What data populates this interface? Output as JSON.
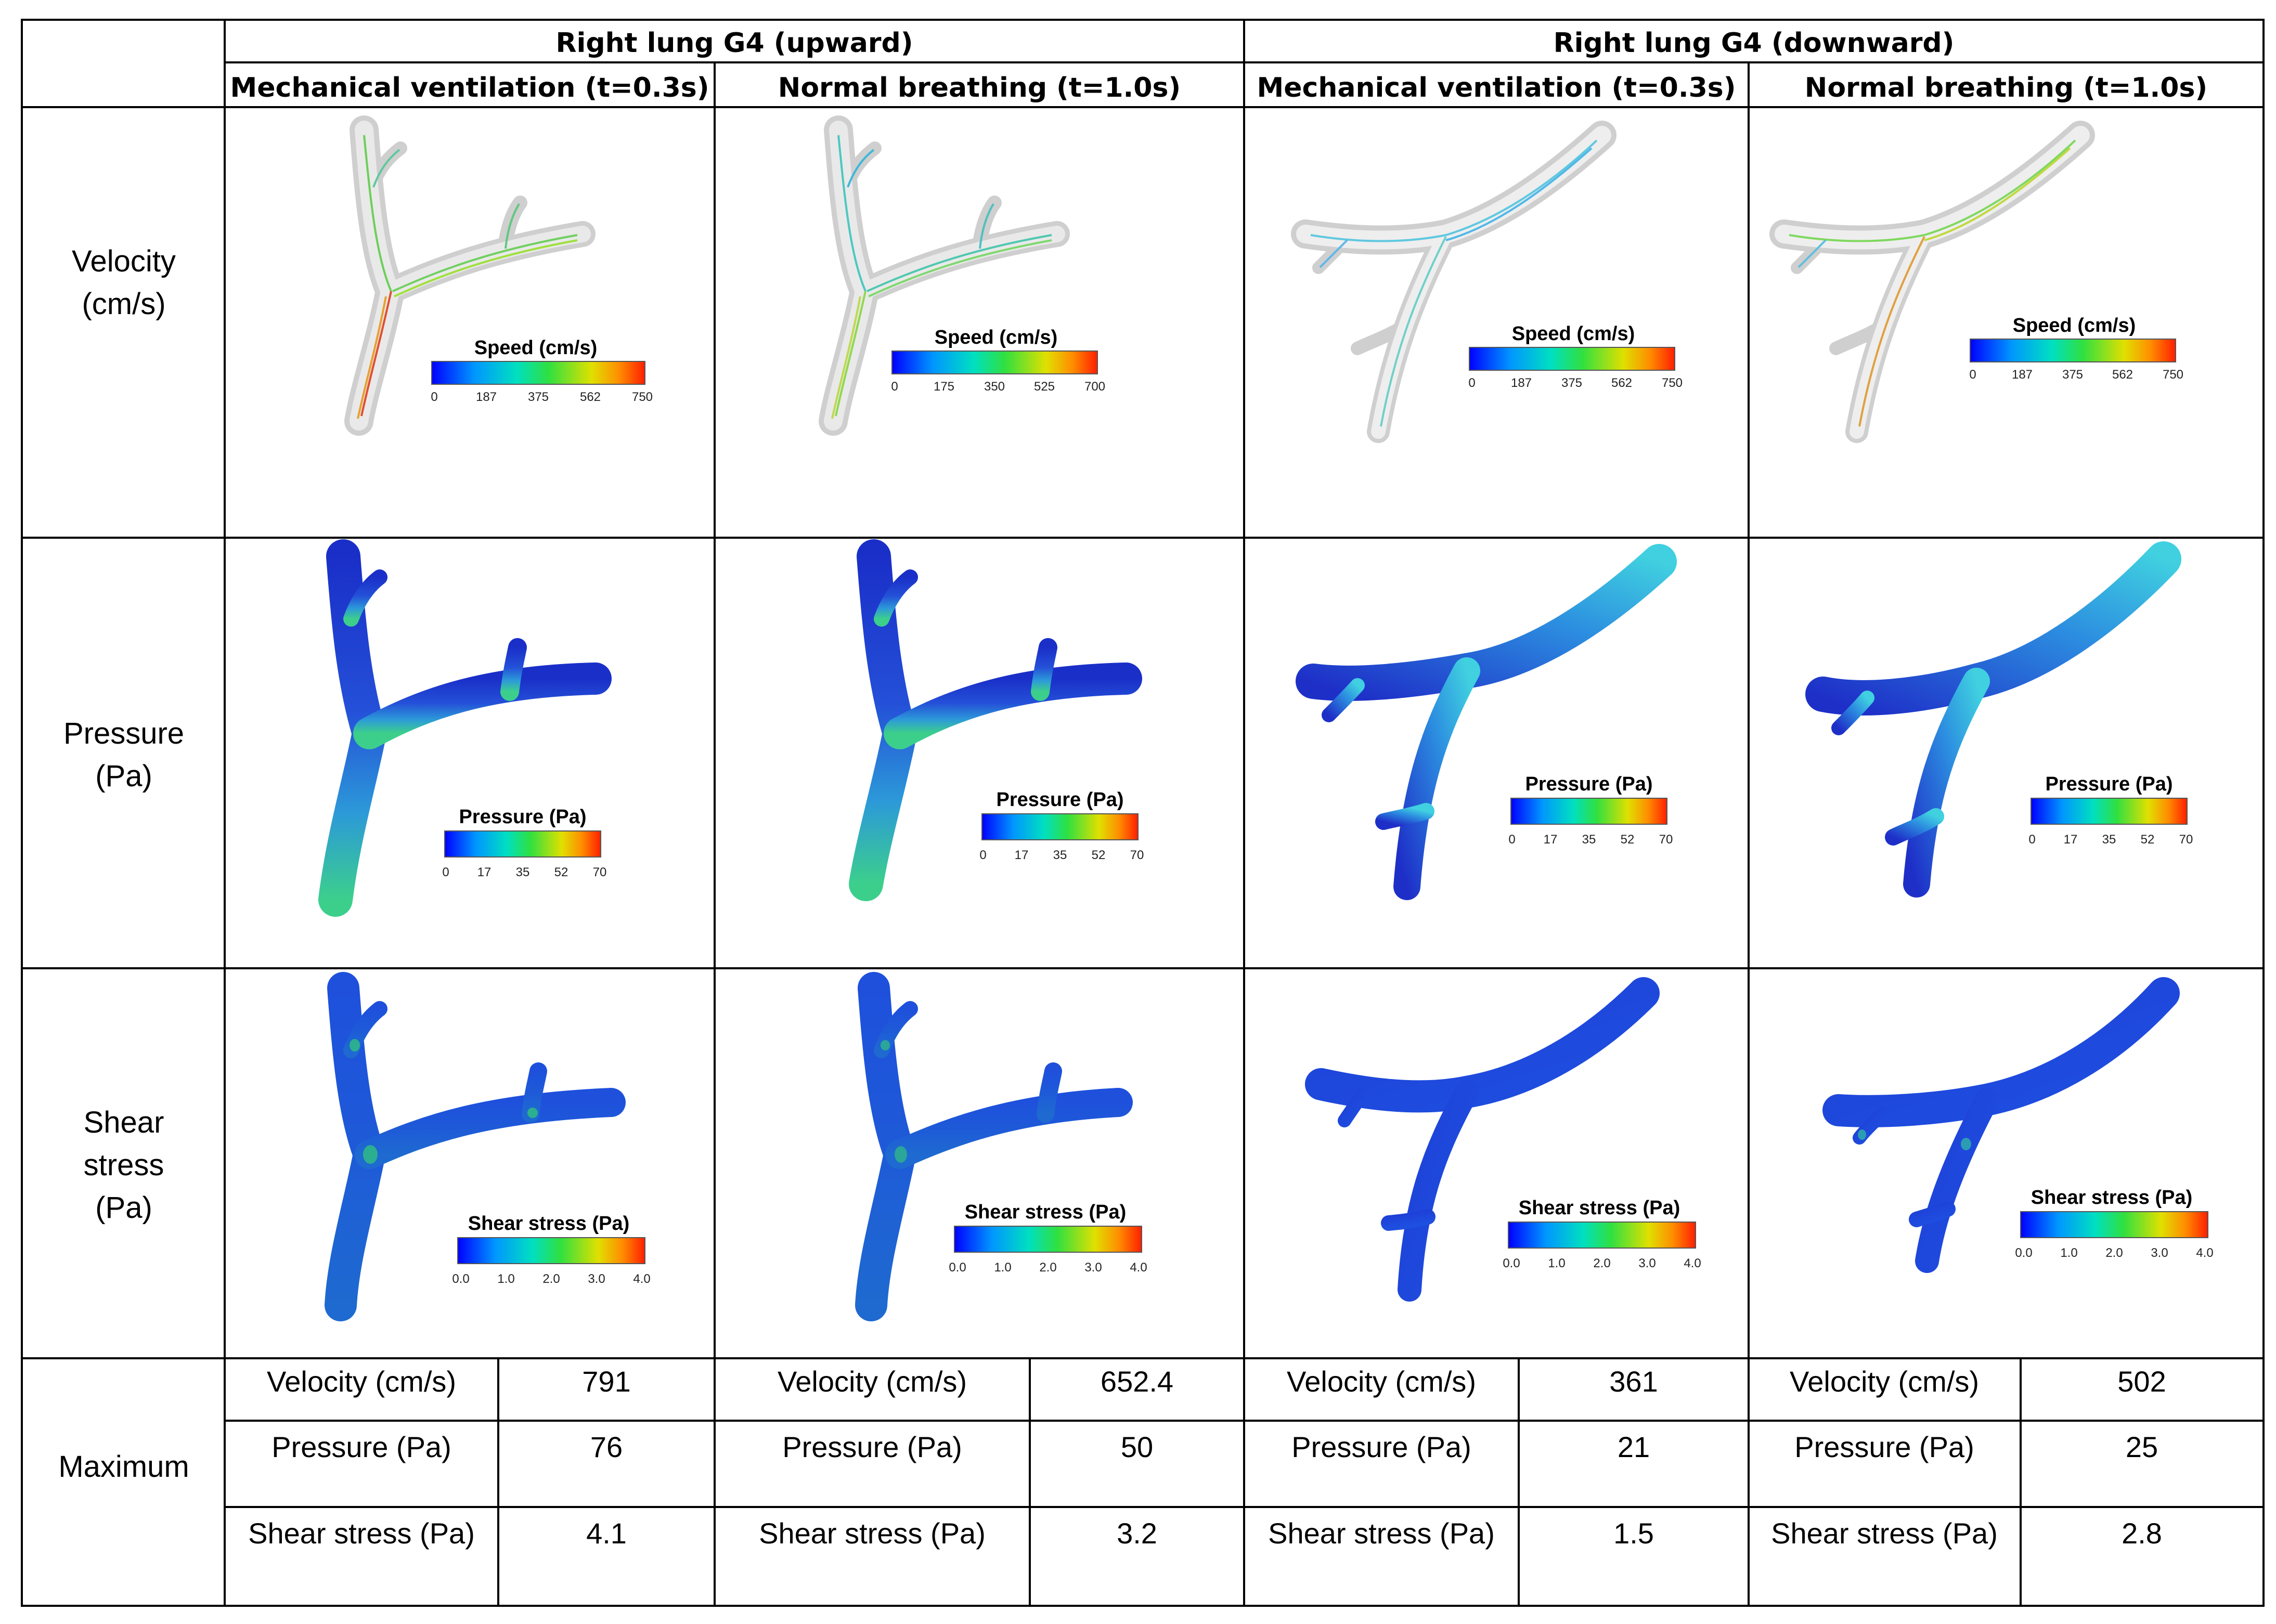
{
  "table": {
    "groups": [
      "Right lung G4 (upward)",
      "Right lung G4 (downward)"
    ],
    "conditions": [
      "Mechanical ventilation (t=0.3s)",
      "Normal breathing (t=1.0s)",
      "Mechanical ventilation (t=0.3s)",
      "Normal breathing (t=1.0s)"
    ],
    "row_labels": {
      "velocity": [
        "Velocity",
        "(cm/s)"
      ],
      "pressure": [
        "Pressure",
        "(Pa)"
      ],
      "shear": [
        "Shear",
        "stress",
        "(Pa)"
      ],
      "maximum": "Maximum"
    },
    "colorbars": {
      "velocity": [
        {
          "title": "Speed (cm/s)",
          "ticks": [
            "0",
            "187",
            "375",
            "562",
            "750"
          ]
        },
        {
          "title": "Speed (cm/s)",
          "ticks": [
            "0",
            "175",
            "350",
            "525",
            "700"
          ]
        },
        {
          "title": "Speed (cm/s)",
          "ticks": [
            "0",
            "187",
            "375",
            "562",
            "750"
          ]
        },
        {
          "title": "Speed (cm/s)",
          "ticks": [
            "0",
            "187",
            "375",
            "562",
            "750"
          ]
        }
      ],
      "pressure": [
        {
          "title": "Pressure (Pa)",
          "ticks": [
            "0",
            "17",
            "35",
            "52",
            "70"
          ]
        },
        {
          "title": "Pressure (Pa)",
          "ticks": [
            "0",
            "17",
            "35",
            "52",
            "70"
          ]
        },
        {
          "title": "Pressure (Pa)",
          "ticks": [
            "0",
            "17",
            "35",
            "52",
            "70"
          ]
        },
        {
          "title": "Pressure (Pa)",
          "ticks": [
            "0",
            "17",
            "35",
            "52",
            "70"
          ]
        }
      ],
      "shear": [
        {
          "title": "Shear stress (Pa)",
          "ticks": [
            "0.0",
            "1.0",
            "2.0",
            "3.0",
            "4.0"
          ]
        },
        {
          "title": "Shear stress (Pa)",
          "ticks": [
            "0.0",
            "1.0",
            "2.0",
            "3.0",
            "4.0"
          ]
        },
        {
          "title": "Shear stress (Pa)",
          "ticks": [
            "0.0",
            "1.0",
            "2.0",
            "3.0",
            "4.0"
          ]
        },
        {
          "title": "Shear stress (Pa)",
          "ticks": [
            "0.0",
            "1.0",
            "2.0",
            "3.0",
            "4.0"
          ]
        }
      ]
    },
    "maximum": {
      "labels": [
        "Velocity (cm/s)",
        "Pressure (Pa)",
        "Shear stress (Pa)"
      ],
      "values": [
        [
          "791",
          "76",
          "4.1"
        ],
        [
          "652.4",
          "50",
          "3.2"
        ],
        [
          "361",
          "21",
          "1.5"
        ],
        [
          "502",
          "25",
          "2.8"
        ]
      ]
    }
  },
  "colors": {
    "rainbow": [
      "#0000ff",
      "#00b4ff",
      "#00e68c",
      "#b4e600",
      "#ffaa00",
      "#ff1e00"
    ],
    "tube_gray": "#d9d9d9",
    "pressure_dark": "#1e3ccd",
    "pressure_light": "#3cb4dc",
    "shear_base": "#1e50dc"
  }
}
